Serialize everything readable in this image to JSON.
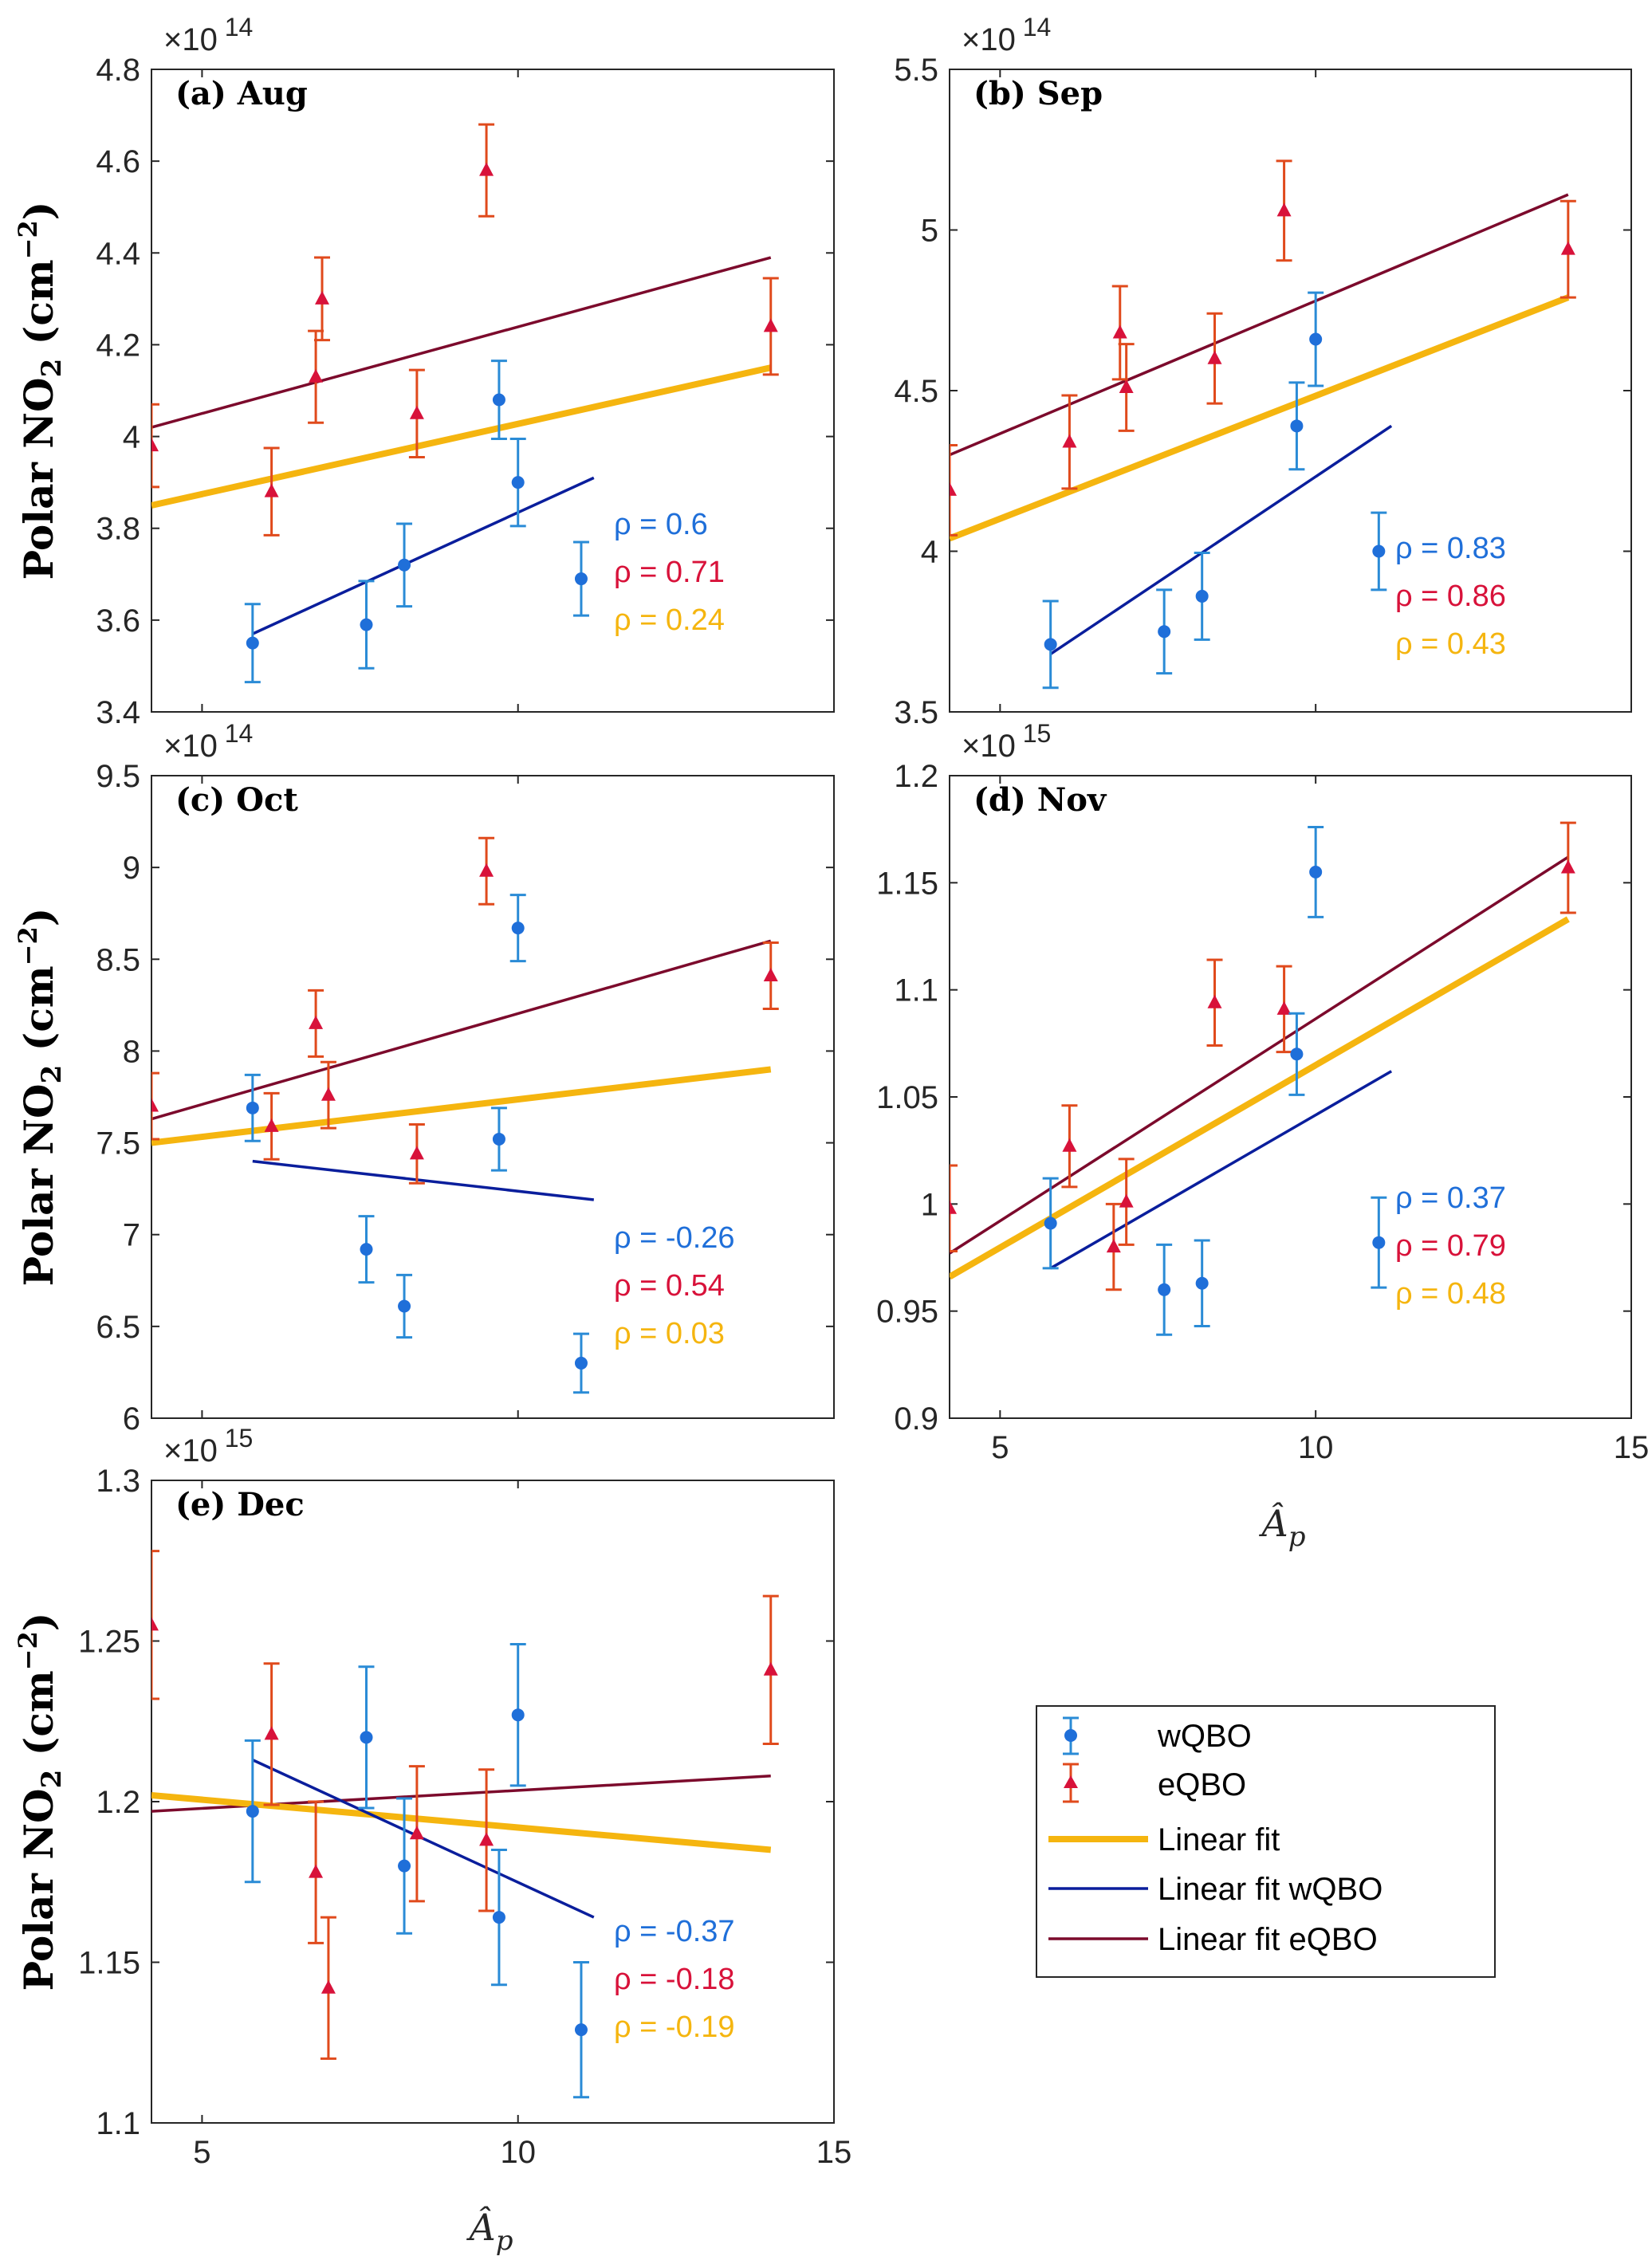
{
  "colors": {
    "wqbo": "#1f6fd9",
    "wqbo_err": "#2a8bd6",
    "eqbo": "#d8123a",
    "eqbo_err": "#e04a1c",
    "fit": "#f5b50f",
    "fit_wqbo": "#0a1e9c",
    "fit_eqbo": "#7c0a2c",
    "rho_w": "#1f6fd9",
    "rho_e": "#d8123a",
    "rho_all": "#f5b50f"
  },
  "ylabel_text": "Polar NO",
  "ylabel_sub": "2",
  "ylabel_unit": "(cm",
  "ylabel_unit_exp": "−2",
  "ylabel_close": ")",
  "xlabel_text": "Â",
  "xlabel_sub": "p",
  "legend": {
    "wqbo": "wQBO",
    "eqbo": "eQBO",
    "fit": "Linear fit",
    "fit_wqbo": "Linear fit wQBO",
    "fit_eqbo": "Linear fit eQBO"
  },
  "chart_data": [
    {
      "type": "scatter",
      "label": "(a) Aug",
      "exponent_base": "×10",
      "exponent": "14",
      "xlim": [
        4.2,
        15
      ],
      "ylim": [
        3.4,
        4.8
      ],
      "yticks": [
        3.4,
        3.6,
        3.8,
        4,
        4.2,
        4.4,
        4.6,
        4.8
      ],
      "ytick_labels": [
        "3.4",
        "3.6",
        "3.8",
        "4",
        "4.2",
        "4.4",
        "4.6",
        "4.8"
      ],
      "xticks": [
        5,
        10,
        15
      ],
      "xtick_labels": [],
      "wqbo": {
        "x": [
          5.8,
          7.6,
          8.2,
          9.7,
          10,
          11
        ],
        "y": [
          3.55,
          3.59,
          3.72,
          4.08,
          3.9,
          3.69
        ],
        "err": [
          0.085,
          0.095,
          0.09,
          0.085,
          0.095,
          0.08
        ]
      },
      "eqbo": {
        "x": [
          4.2,
          6.1,
          6.9,
          8.4,
          9.5,
          14
        ],
        "y": [
          3.98,
          3.88,
          4.3,
          4.05,
          4.58,
          4.24
        ],
        "err": [
          0.09,
          0.095,
          0.09,
          0.095,
          0.1,
          0.105
        ]
      },
      "eqbo_extra": {
        "x": [
          6.8
        ],
        "y": [
          4.13
        ],
        "err": [
          0.1
        ]
      },
      "fit": {
        "x": [
          4.2,
          14
        ],
        "y": [
          3.85,
          4.15
        ]
      },
      "fit_wqbo": {
        "x": [
          5.8,
          11.2
        ],
        "y": [
          3.57,
          3.91
        ]
      },
      "fit_eqbo": {
        "x": [
          4.2,
          14
        ],
        "y": [
          4.02,
          4.39
        ]
      },
      "rho": {
        "w": "ρ = 0.6",
        "e": "ρ = 0.71",
        "all": "ρ = 0.24"
      }
    },
    {
      "type": "scatter",
      "label": "(b) Sep",
      "exponent_base": "×10",
      "exponent": "14",
      "xlim": [
        4.2,
        15
      ],
      "ylim": [
        3.5,
        5.5
      ],
      "yticks": [
        3.5,
        4,
        4.5,
        5,
        5.5
      ],
      "ytick_labels": [
        "3.5",
        "4",
        "4.5",
        "5",
        "5.5"
      ],
      "xticks": [
        5,
        10,
        15
      ],
      "xtick_labels": [],
      "wqbo": {
        "x": [
          5.8,
          7.6,
          8.2,
          9.7,
          10,
          11
        ],
        "y": [
          3.71,
          3.75,
          3.86,
          4.39,
          4.66,
          4.0
        ],
        "err": [
          0.135,
          0.13,
          0.135,
          0.135,
          0.145,
          0.12
        ]
      },
      "eqbo": {
        "x": [
          4.2,
          6.1,
          6.9,
          7.0,
          8.4,
          9.5,
          14
        ],
        "y": [
          4.19,
          4.34,
          4.68,
          4.51,
          4.6,
          5.06,
          4.94
        ],
        "err": [
          0.14,
          0.145,
          0.145,
          0.135,
          0.14,
          0.155,
          0.15
        ]
      },
      "fit": {
        "x": [
          4.2,
          14
        ],
        "y": [
          4.04,
          4.79
        ]
      },
      "fit_wqbo": {
        "x": [
          5.8,
          11.2
        ],
        "y": [
          3.68,
          4.39
        ]
      },
      "fit_eqbo": {
        "x": [
          4.2,
          14
        ],
        "y": [
          4.3,
          5.11
        ]
      },
      "rho": {
        "w": "ρ = 0.83",
        "e": "ρ = 0.86",
        "all": "ρ = 0.43"
      }
    },
    {
      "type": "scatter",
      "label": "(c) Oct",
      "exponent_base": "×10",
      "exponent": "14",
      "xlim": [
        4.2,
        15
      ],
      "ylim": [
        6,
        9.5
      ],
      "yticks": [
        6,
        6.5,
        7,
        7.5,
        8,
        8.5,
        9,
        9.5
      ],
      "ytick_labels": [
        "6",
        "6.5",
        "7",
        "7.5",
        "8",
        "8.5",
        "9",
        "9.5"
      ],
      "xticks": [
        5,
        10,
        15
      ],
      "xtick_labels": [],
      "wqbo": {
        "x": [
          5.8,
          7.6,
          8.2,
          9.7,
          10,
          11
        ],
        "y": [
          7.69,
          6.92,
          6.61,
          7.52,
          8.67,
          6.3
        ],
        "err": [
          0.18,
          0.18,
          0.17,
          0.17,
          0.18,
          0.16
        ]
      },
      "eqbo": {
        "x": [
          4.2,
          6.1,
          6.8,
          7.0,
          8.4,
          9.5,
          14
        ],
        "y": [
          7.7,
          7.59,
          8.15,
          7.76,
          7.44,
          8.98,
          8.41
        ],
        "err": [
          0.18,
          0.18,
          0.18,
          0.18,
          0.16,
          0.18,
          0.18
        ]
      },
      "fit": {
        "x": [
          4.2,
          14
        ],
        "y": [
          7.5,
          7.9
        ]
      },
      "fit_wqbo": {
        "x": [
          5.8,
          11.2
        ],
        "y": [
          7.4,
          7.19
        ]
      },
      "fit_eqbo": {
        "x": [
          4.2,
          14
        ],
        "y": [
          7.63,
          8.6
        ]
      },
      "rho": {
        "w": "ρ = -0.26",
        "e": "ρ = 0.54",
        "all": "ρ = 0.03"
      }
    },
    {
      "type": "scatter",
      "label": "(d) Nov",
      "exponent_base": "×10",
      "exponent": "15",
      "xlim": [
        4.2,
        15
      ],
      "ylim": [
        0.9,
        1.2
      ],
      "yticks": [
        0.9,
        0.95,
        1,
        1.05,
        1.1,
        1.15,
        1.2
      ],
      "ytick_labels": [
        "0.9",
        "0.95",
        "1",
        "1.05",
        "1.1",
        "1.15",
        "1.2"
      ],
      "xticks": [
        5,
        10,
        15
      ],
      "xtick_labels": [
        "5",
        "10",
        "15"
      ],
      "wqbo": {
        "x": [
          5.8,
          7.6,
          8.2,
          9.7,
          10,
          11
        ],
        "y": [
          0.991,
          0.96,
          0.963,
          1.07,
          1.155,
          0.982
        ],
        "err": [
          0.021,
          0.021,
          0.02,
          0.019,
          0.021,
          0.021
        ]
      },
      "eqbo": {
        "x": [
          4.2,
          6.1,
          6.8,
          7.0,
          8.4,
          9.5,
          14
        ],
        "y": [
          0.998,
          1.027,
          0.98,
          1.001,
          1.094,
          1.091,
          1.157
        ],
        "err": [
          0.02,
          0.019,
          0.02,
          0.02,
          0.02,
          0.02,
          0.021
        ]
      },
      "fit": {
        "x": [
          4.2,
          14
        ],
        "y": [
          0.966,
          1.133
        ]
      },
      "fit_wqbo": {
        "x": [
          5.8,
          11.2
        ],
        "y": [
          0.97,
          1.062
        ]
      },
      "fit_eqbo": {
        "x": [
          4.2,
          14
        ],
        "y": [
          0.977,
          1.162
        ]
      },
      "rho": {
        "w": "ρ = 0.37",
        "e": "ρ = 0.79",
        "all": "ρ = 0.48"
      }
    },
    {
      "type": "scatter",
      "label": "(e) Dec",
      "exponent_base": "×10",
      "exponent": "15",
      "xlim": [
        4.2,
        15
      ],
      "ylim": [
        1.1,
        1.3
      ],
      "yticks": [
        1.1,
        1.15,
        1.2,
        1.25,
        1.3
      ],
      "ytick_labels": [
        "1.1",
        "1.15",
        "1.2",
        "1.25",
        "1.3"
      ],
      "xticks": [
        5,
        10,
        15
      ],
      "xtick_labels": [
        "5",
        "10",
        "15"
      ],
      "wqbo": {
        "x": [
          5.8,
          7.6,
          8.2,
          9.7,
          10,
          11
        ],
        "y": [
          1.197,
          1.22,
          1.18,
          1.164,
          1.227,
          1.129
        ],
        "err": [
          0.022,
          0.022,
          0.021,
          0.021,
          0.022,
          0.021
        ]
      },
      "eqbo": {
        "x": [
          4.2,
          6.1,
          6.8,
          7.0,
          8.4,
          9.5,
          14
        ],
        "y": [
          1.255,
          1.221,
          1.178,
          1.142,
          1.19,
          1.188,
          1.241
        ],
        "err": [
          0.023,
          0.022,
          0.022,
          0.022,
          0.021,
          0.022,
          0.023
        ]
      },
      "fit": {
        "x": [
          4.2,
          14
        ],
        "y": [
          1.202,
          1.185
        ]
      },
      "fit_wqbo": {
        "x": [
          5.8,
          11.2
        ],
        "y": [
          1.213,
          1.164
        ]
      },
      "fit_eqbo": {
        "x": [
          4.2,
          14
        ],
        "y": [
          1.197,
          1.208
        ]
      },
      "rho": {
        "w": "ρ = -0.37",
        "e": "ρ = -0.18",
        "all": "ρ = -0.19"
      }
    }
  ]
}
